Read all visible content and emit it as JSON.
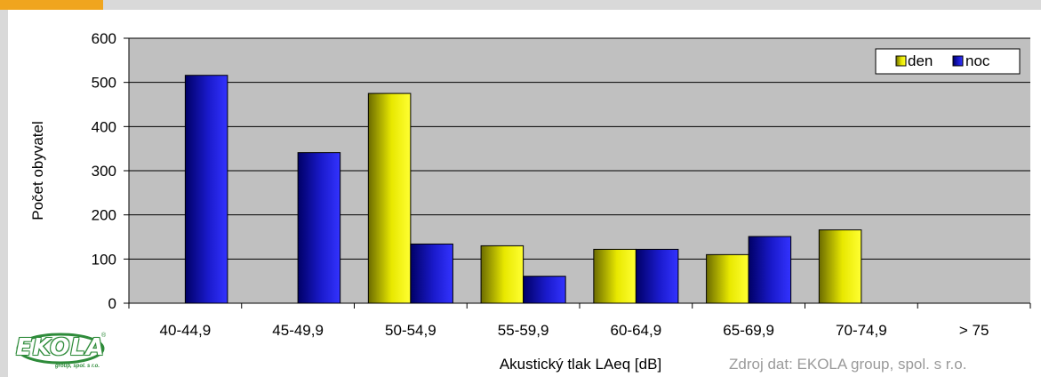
{
  "logo": {
    "text": "EKOLA",
    "sub": "group, spol. s r.o.",
    "registered": "®"
  },
  "source_note": "Zdroj dat: EKOLA group, spol. s r.o.",
  "colors": {
    "plot_bg": "#c0c0c0",
    "den": "#f5f500",
    "noc": "#1a1aff",
    "orange_accent": "#f0a51e"
  },
  "chart_data": {
    "type": "bar",
    "title": "",
    "xlabel": "Akustický tlak LAeq [dB]",
    "ylabel": "Počet obyvatel",
    "ylim": [
      0,
      600
    ],
    "yticks": [
      0,
      100,
      200,
      300,
      400,
      500,
      600
    ],
    "grid": true,
    "legend": "top-right",
    "categories": [
      "40-44,9",
      "45-49,9",
      "50-54,9",
      "55-59,9",
      "60-64,9",
      "65-69,9",
      "70-74,9",
      "> 75"
    ],
    "series": [
      {
        "name": "den",
        "values": [
          0,
          0,
          475,
          130,
          122,
          110,
          166,
          0
        ]
      },
      {
        "name": "noc",
        "values": [
          516,
          341,
          134,
          61,
          122,
          151,
          0,
          0
        ]
      }
    ]
  }
}
